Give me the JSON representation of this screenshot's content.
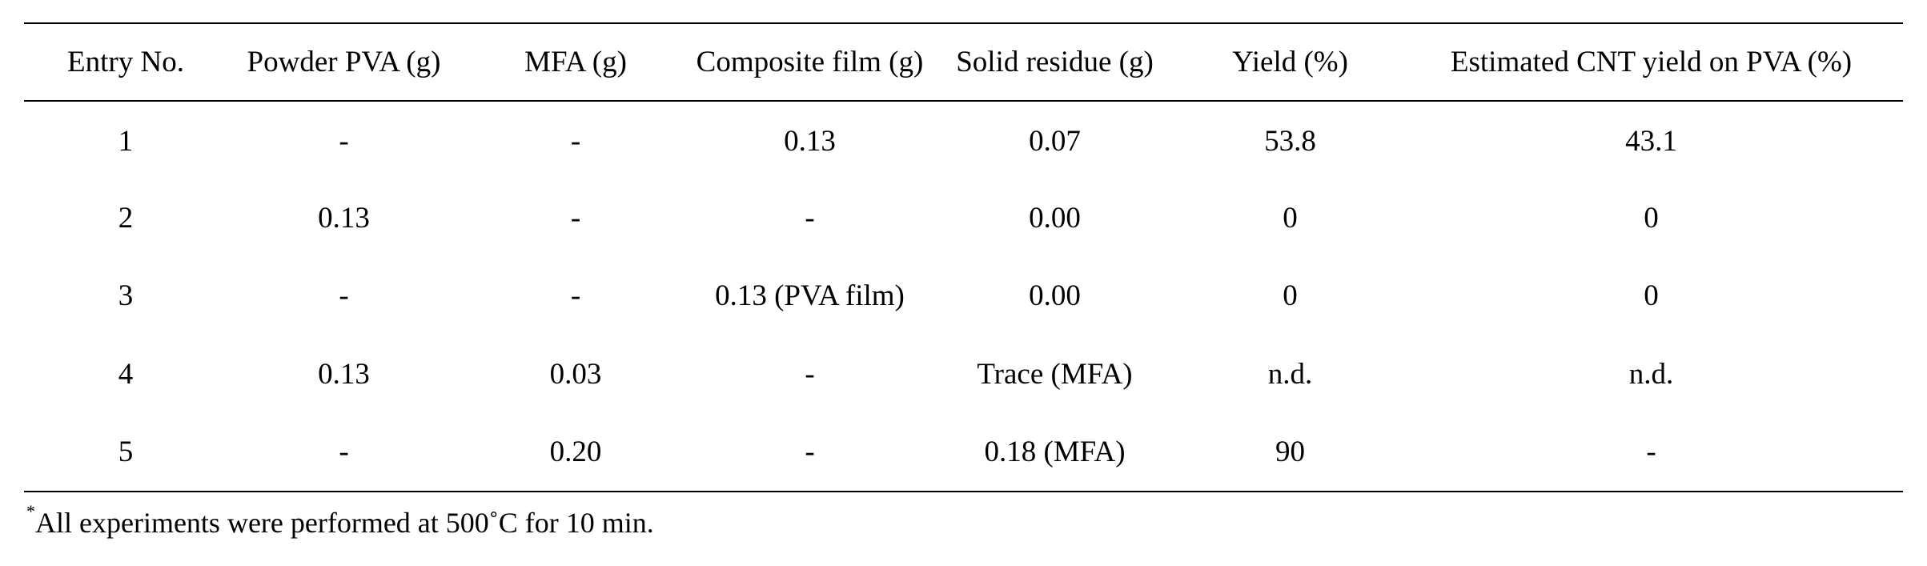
{
  "table": {
    "headers": [
      "Entry No.",
      "Powder PVA (g)",
      "MFA (g)",
      "Composite film (g)",
      "Solid residue (g)",
      "Yield (%)",
      "Estimated CNT yield on PVA (%)"
    ],
    "rows": [
      [
        "1",
        "-",
        "-",
        "0.13",
        "0.07",
        "53.8",
        "43.1"
      ],
      [
        "2",
        "0.13",
        "-",
        "-",
        "0.00",
        "0",
        "0"
      ],
      [
        "3",
        "-",
        "-",
        "0.13 (PVA film)",
        "0.00",
        "0",
        "0"
      ],
      [
        "4",
        "0.13",
        "0.03",
        "-",
        "Trace (MFA)",
        "n.d.",
        "n.d."
      ],
      [
        "5",
        "-",
        "0.20",
        "-",
        "0.18 (MFA)",
        "90",
        "-"
      ]
    ]
  },
  "footnote": {
    "marker": "*",
    "text": "All experiments were performed at 500˚C for 10 min."
  }
}
